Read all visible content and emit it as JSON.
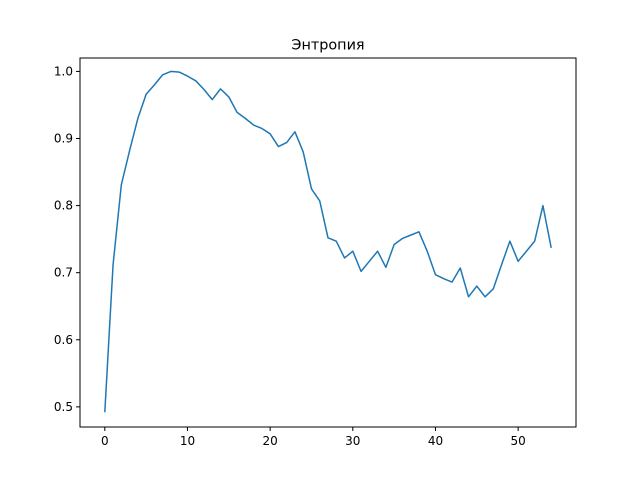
{
  "chart_data": {
    "type": "line",
    "title": "Энтропия",
    "xlabel": "",
    "ylabel": "",
    "xlim": [
      -3,
      57
    ],
    "ylim": [
      0.47,
      1.02
    ],
    "xticks": [
      0,
      10,
      20,
      30,
      40,
      50
    ],
    "yticks": [
      0.5,
      0.6,
      0.7,
      0.8,
      0.9,
      1.0
    ],
    "xtick_labels": [
      "0",
      "10",
      "20",
      "30",
      "40",
      "50"
    ],
    "ytick_labels": [
      "0.5",
      "0.6",
      "0.7",
      "0.8",
      "0.9",
      "1.0"
    ],
    "grid": false,
    "series": [
      {
        "color": "#1f77b4",
        "x": [
          0,
          1,
          2,
          3,
          4,
          5,
          6,
          7,
          8,
          9,
          10,
          11,
          12,
          13,
          14,
          15,
          16,
          17,
          18,
          19,
          20,
          21,
          22,
          23,
          24,
          25,
          26,
          27,
          28,
          29,
          30,
          31,
          32,
          33,
          34,
          35,
          36,
          37,
          38,
          39,
          40,
          41,
          42,
          43,
          44,
          45,
          46,
          47,
          48,
          49,
          50,
          51,
          52,
          53,
          54
        ],
        "values": [
          0.492,
          0.712,
          0.831,
          0.882,
          0.93,
          0.966,
          0.98,
          0.995,
          1.0,
          0.999,
          0.993,
          0.986,
          0.973,
          0.958,
          0.974,
          0.962,
          0.939,
          0.93,
          0.92,
          0.915,
          0.907,
          0.888,
          0.894,
          0.91,
          0.88,
          0.825,
          0.807,
          0.752,
          0.747,
          0.722,
          0.732,
          0.702,
          0.717,
          0.732,
          0.708,
          0.742,
          0.751,
          0.756,
          0.761,
          0.732,
          0.697,
          0.691,
          0.686,
          0.707,
          0.664,
          0.68,
          0.664,
          0.676,
          0.712,
          0.747,
          0.717,
          0.732,
          0.747,
          0.8,
          0.737
        ]
      }
    ]
  }
}
